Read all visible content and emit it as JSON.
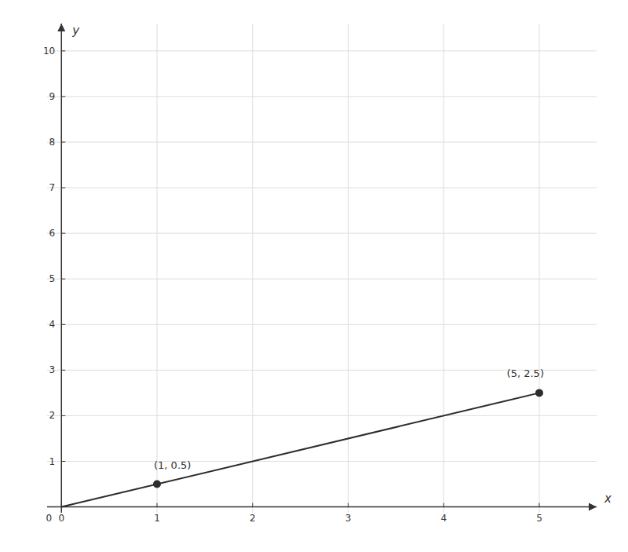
{
  "chart_data": {
    "type": "line",
    "xlabel": "x",
    "ylabel": "y",
    "origin_label": "0",
    "xlim": [
      -0.15,
      5.6
    ],
    "ylim": [
      -0.3,
      10.6
    ],
    "xticks": [
      0,
      1,
      2,
      3,
      4,
      5
    ],
    "yticks": [
      1,
      2,
      3,
      4,
      5,
      6,
      7,
      8,
      9,
      10
    ],
    "grid": true,
    "data_labels": true,
    "series": [
      {
        "type": "line",
        "color": "#2d2d2d",
        "x": [
          0,
          5
        ],
        "values": [
          0,
          2.5
        ]
      },
      {
        "type": "scatter",
        "color": "#2d2d2d",
        "marker": "circle",
        "x": [
          1,
          5
        ],
        "values": [
          0.5,
          2.5
        ],
        "value_labels": [
          "(1, 0.5)",
          "(5, 2.5)"
        ]
      }
    ]
  }
}
